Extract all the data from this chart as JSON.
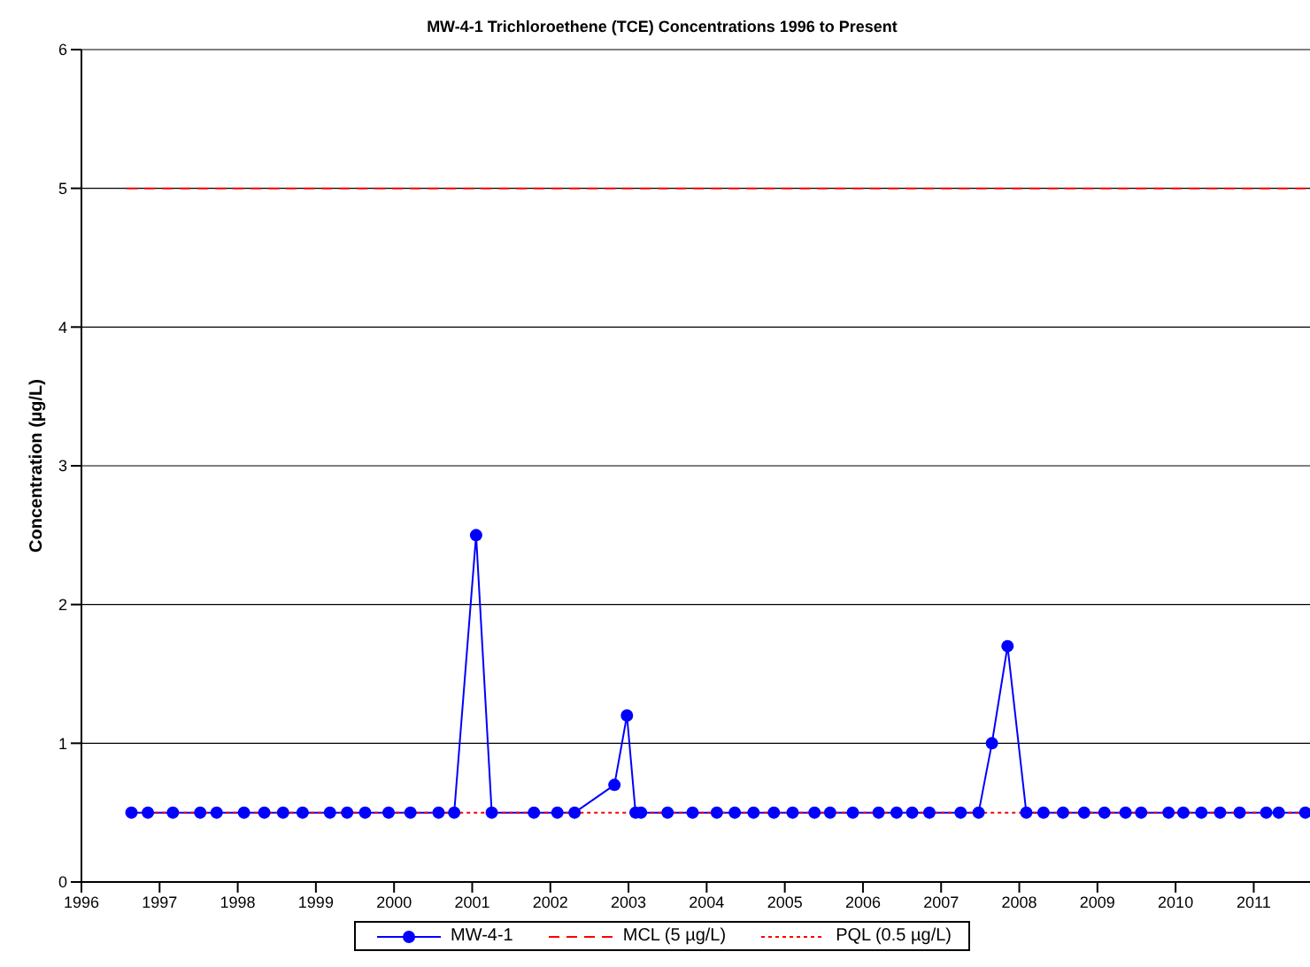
{
  "chart_data": {
    "type": "line",
    "title": "MW-4-1 Trichloroethene (TCE) Concentrations 1996 to Present",
    "ylabel": "Concentration (µg/L)",
    "xlim": [
      1996,
      2011.72
    ],
    "xticks": [
      1996,
      1997,
      1998,
      1999,
      2000,
      2001,
      2002,
      2003,
      2004,
      2005,
      2006,
      2007,
      2008,
      2009,
      2010,
      2011
    ],
    "ylim": [
      0,
      6
    ],
    "yticks": [
      0,
      1,
      2,
      3,
      4,
      5,
      6
    ],
    "grid": "y",
    "legend": "bottom",
    "series": [
      {
        "name": "MW-4-1",
        "color": "#0000ff",
        "marker": "circle",
        "line_style": "solid",
        "x": [
          1996.64,
          1996.85,
          1997.17,
          1997.52,
          1997.73,
          1998.08,
          1998.34,
          1998.58,
          1998.83,
          1999.18,
          1999.4,
          1999.63,
          1999.93,
          2000.21,
          2000.57,
          2000.77,
          2001.05,
          2001.25,
          2001.79,
          2002.09,
          2002.31,
          2002.82,
          2002.98,
          2003.09,
          2003.16,
          2003.5,
          2003.82,
          2004.13,
          2004.36,
          2004.6,
          2004.86,
          2005.1,
          2005.38,
          2005.58,
          2005.87,
          2006.2,
          2006.43,
          2006.63,
          2006.85,
          2007.25,
          2007.48,
          2007.65,
          2007.85,
          2008.09,
          2008.31,
          2008.56,
          2008.83,
          2009.09,
          2009.36,
          2009.56,
          2009.91,
          2010.1,
          2010.33,
          2010.57,
          2010.82,
          2011.16,
          2011.32,
          2011.66
        ],
        "values": [
          0.5,
          0.5,
          0.5,
          0.5,
          0.5,
          0.5,
          0.5,
          0.5,
          0.5,
          0.5,
          0.5,
          0.5,
          0.5,
          0.5,
          0.5,
          0.5,
          2.5,
          0.5,
          0.5,
          0.5,
          0.5,
          0.7,
          1.2,
          0.5,
          0.5,
          0.5,
          0.5,
          0.5,
          0.5,
          0.5,
          0.5,
          0.5,
          0.5,
          0.5,
          0.5,
          0.5,
          0.5,
          0.5,
          0.5,
          0.5,
          0.5,
          1.0,
          1.7,
          0.5,
          0.5,
          0.5,
          0.5,
          0.5,
          0.5,
          0.5,
          0.5,
          0.5,
          0.5,
          0.5,
          0.5,
          0.5,
          0.5,
          0.5
        ]
      },
      {
        "name": "MCL (5 µg/L)",
        "color": "#ff0000",
        "marker": "none",
        "line_style": "dashed",
        "x": [
          1996.58,
          2011.72
        ],
        "values": [
          5,
          5
        ]
      },
      {
        "name": "PQL (0.5 µg/L)",
        "color": "#ff0000",
        "marker": "none",
        "line_style": "dotted",
        "x": [
          1996.58,
          2011.72
        ],
        "values": [
          0.5,
          0.5
        ]
      }
    ]
  }
}
